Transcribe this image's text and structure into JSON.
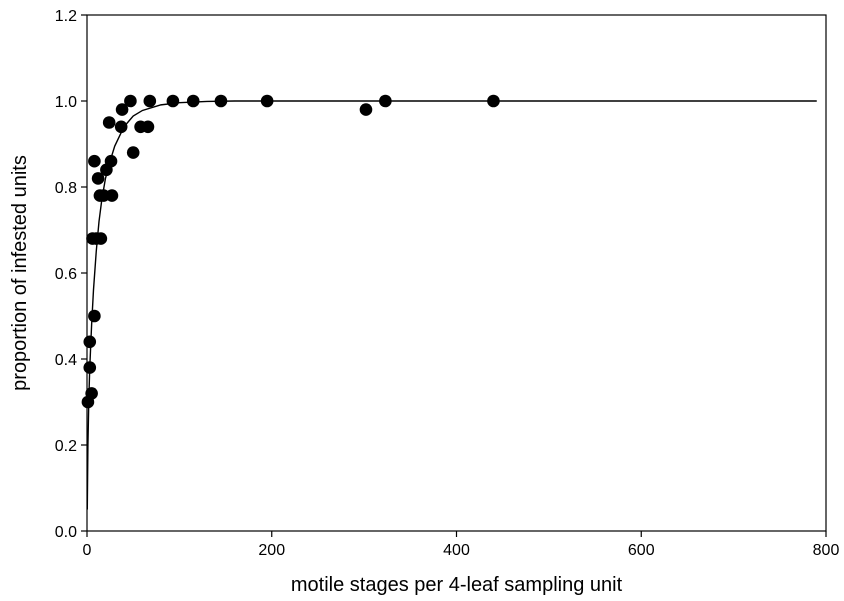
{
  "chart_data": {
    "type": "scatter",
    "title": "",
    "xlabel": "motile stages per 4-leaf sampling unit",
    "ylabel": "proportion of infested units",
    "xlim": [
      0,
      800
    ],
    "ylim": [
      0.0,
      1.2
    ],
    "x_ticks": [
      0,
      200,
      400,
      600,
      800
    ],
    "x_tick_labels": [
      "0",
      "200",
      "400",
      "600",
      "800"
    ],
    "y_ticks": [
      0.0,
      0.2,
      0.4,
      0.6,
      0.8,
      1.0,
      1.2
    ],
    "y_tick_labels": [
      "0.0",
      "0.2",
      "0.4",
      "0.6",
      "0.8",
      "1.0",
      "1.2"
    ],
    "grid": false,
    "legend": "none",
    "series": [
      {
        "kind": "points",
        "marker": "filled-circle",
        "color": "#000000",
        "x": [
          1,
          3,
          3,
          5,
          6,
          8,
          8,
          10,
          12,
          14,
          15,
          18,
          21,
          24,
          26,
          27,
          37,
          38,
          47,
          50,
          58,
          66,
          68,
          93,
          115,
          145,
          195,
          302,
          323,
          440
        ],
        "y": [
          0.3,
          0.38,
          0.44,
          0.32,
          0.68,
          0.5,
          0.86,
          0.68,
          0.82,
          0.78,
          0.68,
          0.78,
          0.84,
          0.95,
          0.86,
          0.78,
          0.94,
          0.98,
          1.0,
          0.88,
          0.94,
          0.94,
          1.0,
          1.0,
          1.0,
          1.0,
          1.0,
          0.98,
          1.0,
          1.0
        ]
      },
      {
        "kind": "fitted-curve",
        "color": "#000000",
        "x": [
          0.3,
          1,
          2,
          3,
          5,
          7,
          10,
          13,
          16,
          20,
          25,
          30,
          40,
          50,
          60,
          80,
          100,
          130,
          160,
          200,
          250,
          300,
          400,
          500,
          600,
          700,
          790
        ],
        "y": [
          0.05,
          0.2,
          0.31,
          0.38,
          0.48,
          0.56,
          0.65,
          0.72,
          0.77,
          0.82,
          0.86,
          0.895,
          0.94,
          0.965,
          0.978,
          0.991,
          0.996,
          0.999,
          1.0,
          1.0,
          1.0,
          1.0,
          1.0,
          1.0,
          1.0,
          1.0,
          1.0
        ]
      }
    ]
  }
}
